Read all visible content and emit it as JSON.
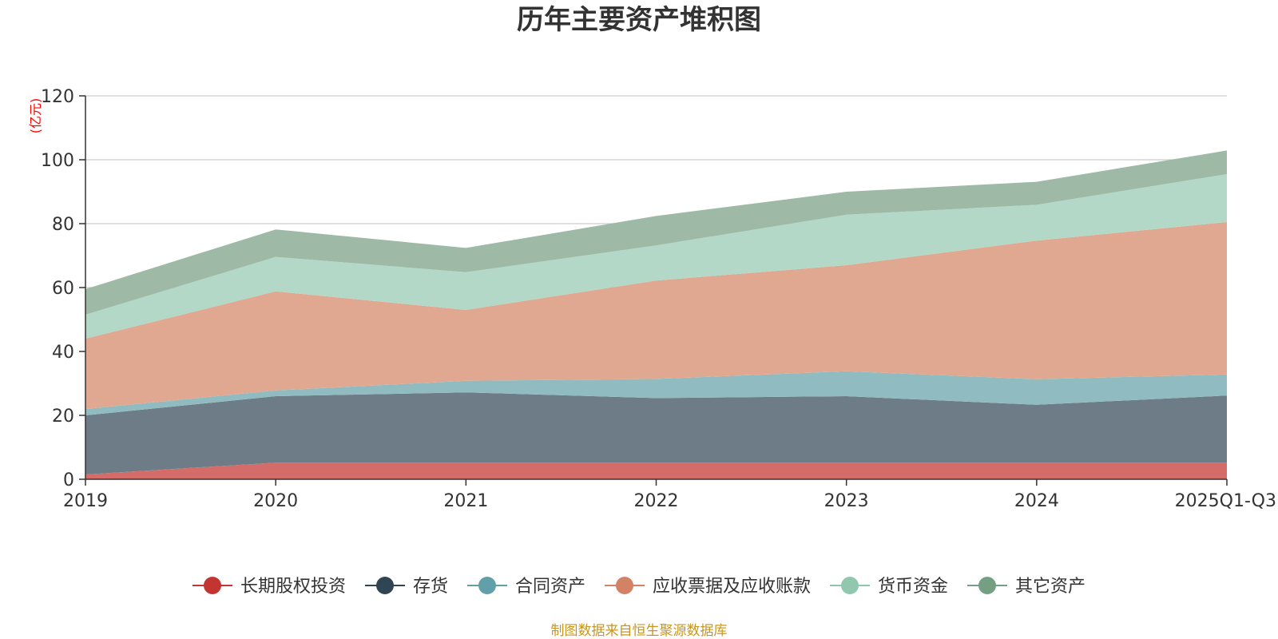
{
  "chart_data": {
    "type": "area",
    "stacked": true,
    "title": "历年主要资产堆积图",
    "unit_label": "(亿元)",
    "categories": [
      "2019",
      "2020",
      "2021",
      "2022",
      "2023",
      "2024",
      "2025Q1-Q3"
    ],
    "ylim": [
      0,
      120
    ],
    "yticks": [
      "0",
      "20",
      "40",
      "60",
      "80",
      "100",
      "120"
    ],
    "grid": true,
    "legend_position": "bottom",
    "series": [
      {
        "name": "长期股权投资",
        "values": [
          1.5,
          5.2,
          5.2,
          5.2,
          5.2,
          5.2,
          5.2
        ],
        "line_color": "#c23531",
        "fill_color": "#d46c6a"
      },
      {
        "name": "存货",
        "values": [
          18.5,
          20.8,
          22.0,
          20.2,
          20.8,
          18.1,
          21.0
        ],
        "line_color": "#2f4554",
        "fill_color": "#6e7c87"
      },
      {
        "name": "合同资产",
        "values": [
          2.0,
          1.8,
          3.6,
          6.0,
          7.8,
          8.0,
          6.6
        ],
        "line_color": "#61a0a8",
        "fill_color": "#90bcc1"
      },
      {
        "name": "应收票据及应收账款",
        "values": [
          22.0,
          31.0,
          22.2,
          30.8,
          33.2,
          43.4,
          47.7
        ],
        "line_color": "#d48265",
        "fill_color": "#e0a891"
      },
      {
        "name": "货币资金",
        "values": [
          7.5,
          10.8,
          11.8,
          11.0,
          15.8,
          11.2,
          15.0
        ],
        "line_color": "#91c7ae",
        "fill_color": "#b3d8c7"
      },
      {
        "name": "其它资产",
        "values": [
          8.0,
          8.6,
          7.6,
          9.2,
          7.2,
          7.2,
          7.4
        ],
        "line_color": "#749f83",
        "fill_color": "#9eb9a6"
      }
    ]
  },
  "source_note": "制图数据来自恒生聚源数据库"
}
